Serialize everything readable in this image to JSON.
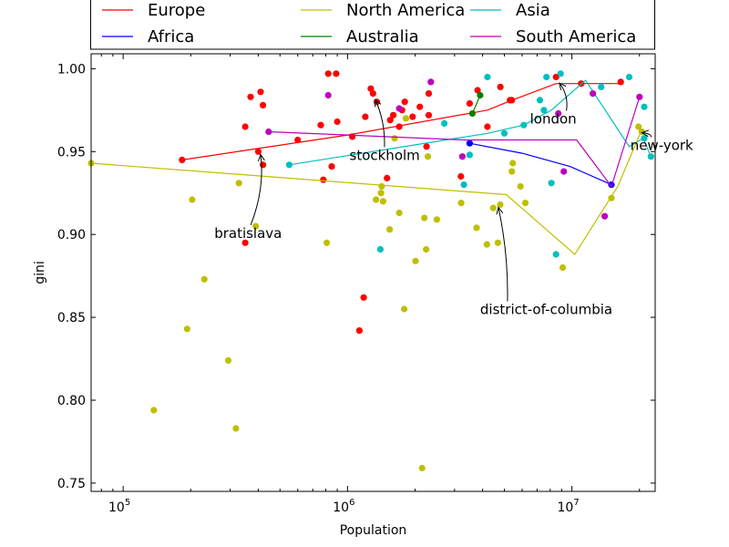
{
  "chart_data": {
    "type": "scatter",
    "xscale": "log",
    "xlabel": "Population",
    "ylabel": "gini",
    "xlim": [
      72000,
      23500000
    ],
    "ylim": [
      0.745,
      1.009
    ],
    "xticks": [
      {
        "value": 100000,
        "base": "10",
        "exp": "5"
      },
      {
        "value": 1000000,
        "base": "10",
        "exp": "6"
      },
      {
        "value": 10000000,
        "base": "10",
        "exp": "7"
      }
    ],
    "yticks": [
      0.75,
      0.8,
      0.85,
      0.9,
      0.95,
      1.0
    ],
    "ytick_labels": [
      "0.75",
      "0.80",
      "0.85",
      "0.90",
      "0.95",
      "1.00"
    ],
    "legend": {
      "placement": "top",
      "entries": [
        {
          "name": "Europe",
          "color": "#ff0000"
        },
        {
          "name": "Africa",
          "color": "#0000ff"
        },
        {
          "name": "North America",
          "color": "#bfbf00"
        },
        {
          "name": "Australia",
          "color": "#008000"
        },
        {
          "name": "Asia",
          "color": "#00bfbf"
        },
        {
          "name": "South America",
          "color": "#bf00bf"
        }
      ]
    },
    "series": [
      {
        "name": "Europe",
        "color": "#ff0000",
        "points": [
          [
            183000,
            0.945
          ],
          [
            350000,
            0.965
          ],
          [
            350000,
            0.895
          ],
          [
            370000,
            0.983
          ],
          [
            400000,
            0.95
          ],
          [
            410000,
            0.986
          ],
          [
            420000,
            0.942
          ],
          [
            420000,
            0.978
          ],
          [
            600000,
            0.957
          ],
          [
            760000,
            0.966
          ],
          [
            780000,
            0.933
          ],
          [
            820000,
            0.997
          ],
          [
            850000,
            0.941
          ],
          [
            890000,
            0.997
          ],
          [
            900000,
            0.968
          ],
          [
            1050000,
            0.959
          ],
          [
            1130000,
            0.842
          ],
          [
            1180000,
            0.862
          ],
          [
            1200000,
            0.971
          ],
          [
            1270000,
            0.988
          ],
          [
            1300000,
            0.985
          ],
          [
            1350000,
            0.98
          ],
          [
            1500000,
            0.934
          ],
          [
            1550000,
            0.969
          ],
          [
            1600000,
            0.972
          ],
          [
            1700000,
            0.965
          ],
          [
            1750000,
            0.975
          ],
          [
            1800000,
            0.98
          ],
          [
            1950000,
            0.971
          ],
          [
            2100000,
            0.977
          ],
          [
            2250000,
            0.953
          ],
          [
            2300000,
            0.972
          ],
          [
            2300000,
            0.985
          ],
          [
            3200000,
            0.935
          ],
          [
            3500000,
            0.979
          ],
          [
            3800000,
            0.987
          ],
          [
            4200000,
            0.965
          ],
          [
            4800000,
            0.989
          ],
          [
            5300000,
            0.981
          ],
          [
            5400000,
            0.981
          ],
          [
            8500000,
            0.995
          ],
          [
            11000000,
            0.991
          ],
          [
            16500000,
            0.992
          ]
        ],
        "line": [
          [
            183000,
            0.945
          ],
          [
            1000000,
            0.96
          ],
          [
            4200000,
            0.975
          ],
          [
            5400000,
            0.981
          ],
          [
            8500000,
            0.991
          ],
          [
            16500000,
            0.991
          ]
        ]
      },
      {
        "name": "Africa",
        "color": "#0000ff",
        "points": [
          [
            3500000,
            0.955
          ],
          [
            15000000,
            0.93
          ]
        ],
        "line": [
          [
            3500000,
            0.955
          ],
          [
            6000000,
            0.949
          ],
          [
            9800000,
            0.941
          ],
          [
            15000000,
            0.93
          ]
        ]
      },
      {
        "name": "Asia",
        "color": "#00bfbf",
        "points": [
          [
            550000,
            0.942
          ],
          [
            1400000,
            0.891
          ],
          [
            2700000,
            0.967
          ],
          [
            3300000,
            0.93
          ],
          [
            3500000,
            0.948
          ],
          [
            4200000,
            0.995
          ],
          [
            5000000,
            0.961
          ],
          [
            6100000,
            0.966
          ],
          [
            7200000,
            0.981
          ],
          [
            7500000,
            0.975
          ],
          [
            7700000,
            0.995
          ],
          [
            8100000,
            0.931
          ],
          [
            8500000,
            0.888
          ],
          [
            8900000,
            0.997
          ],
          [
            13500000,
            0.989
          ],
          [
            18000000,
            0.995
          ],
          [
            21000000,
            0.958
          ],
          [
            21000000,
            0.977
          ],
          [
            22500000,
            0.947
          ]
        ],
        "line": [
          [
            550000,
            0.942
          ],
          [
            4200000,
            0.961
          ],
          [
            6100000,
            0.966
          ],
          [
            8100000,
            0.975
          ],
          [
            11500000,
            0.993
          ],
          [
            18000000,
            0.953
          ],
          [
            20800000,
            0.958
          ],
          [
            22500000,
            0.947
          ]
        ]
      },
      {
        "name": "Australia",
        "color": "#008000",
        "points": [
          [
            3600000,
            0.973
          ],
          [
            3900000,
            0.984
          ]
        ],
        "line": [
          [
            3600000,
            0.973
          ],
          [
            3900000,
            0.984
          ]
        ]
      },
      {
        "name": "North America",
        "color": "#bfbf00",
        "points": [
          [
            72000,
            0.943
          ],
          [
            137000,
            0.794
          ],
          [
            193000,
            0.843
          ],
          [
            203000,
            0.921
          ],
          [
            230000,
            0.873
          ],
          [
            294000,
            0.824
          ],
          [
            318000,
            0.783
          ],
          [
            328000,
            0.931
          ],
          [
            390000,
            0.905
          ],
          [
            808000,
            0.895
          ],
          [
            1340000,
            0.921
          ],
          [
            1410000,
            0.925
          ],
          [
            1420000,
            0.929
          ],
          [
            1440000,
            0.92
          ],
          [
            1540000,
            0.903
          ],
          [
            1620000,
            0.958
          ],
          [
            1700000,
            0.913
          ],
          [
            1790000,
            0.855
          ],
          [
            1820000,
            0.97
          ],
          [
            2010000,
            0.884
          ],
          [
            2150000,
            0.759
          ],
          [
            2200000,
            0.91
          ],
          [
            2240000,
            0.891
          ],
          [
            2280000,
            0.947
          ],
          [
            2500000,
            0.909
          ],
          [
            3210000,
            0.919
          ],
          [
            3760000,
            0.904
          ],
          [
            4180000,
            0.894
          ],
          [
            4460000,
            0.916
          ],
          [
            4680000,
            0.895
          ],
          [
            4790000,
            0.918
          ],
          [
            5400000,
            0.938
          ],
          [
            5450000,
            0.943
          ],
          [
            5900000,
            0.929
          ],
          [
            6200000,
            0.919
          ],
          [
            9100000,
            0.88
          ],
          [
            15000000,
            0.922
          ],
          [
            19800000,
            0.965
          ],
          [
            20500000,
            0.962
          ]
        ],
        "line": [
          [
            72000,
            0.943
          ],
          [
            5100000,
            0.924
          ],
          [
            10300000,
            0.888
          ],
          [
            16000000,
            0.929
          ],
          [
            20300000,
            0.962
          ]
        ]
      },
      {
        "name": "South America",
        "color": "#bf00bf",
        "points": [
          [
            445000,
            0.962
          ],
          [
            820000,
            0.984
          ],
          [
            1700000,
            0.976
          ],
          [
            2350000,
            0.992
          ],
          [
            3250000,
            0.947
          ],
          [
            8700000,
            0.973
          ],
          [
            9200000,
            0.938
          ],
          [
            12400000,
            0.985
          ],
          [
            14000000,
            0.911
          ],
          [
            20000000,
            0.983
          ]
        ],
        "line": [
          [
            445000,
            0.962
          ],
          [
            3300000,
            0.957
          ],
          [
            10500000,
            0.957
          ],
          [
            15000000,
            0.929
          ],
          [
            20000000,
            0.983
          ]
        ]
      }
    ],
    "annotations": [
      {
        "text": "bratislava",
        "x": 410000,
        "y": 0.95,
        "text_x": 255000,
        "text_y": 0.898
      },
      {
        "text": "stockholm",
        "x": 1330000,
        "y": 0.983,
        "text_x": 1020000,
        "text_y": 0.945
      },
      {
        "text": "london",
        "x": 8800000,
        "y": 0.993,
        "text_x": 6500000,
        "text_y": 0.967
      },
      {
        "text": "new-york",
        "x": 20500000,
        "y": 0.963,
        "text_x": 18200000,
        "text_y": 0.951
      },
      {
        "text": "district-of-columbia",
        "x": 4700000,
        "y": 0.918,
        "text_x": 3900000,
        "text_y": 0.852
      }
    ]
  }
}
